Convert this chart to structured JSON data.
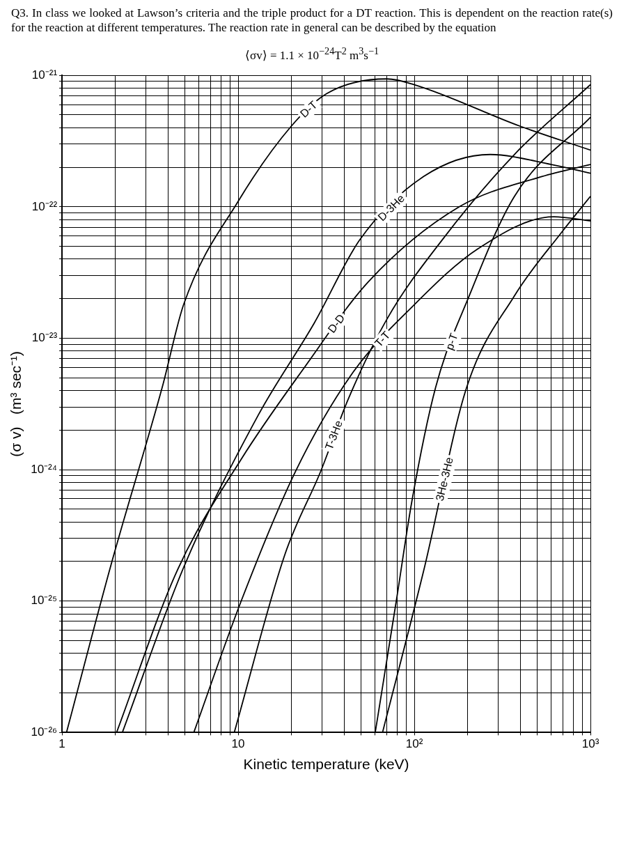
{
  "chart_data": {
    "type": "line",
    "title": "Q3. In class we looked at Lawson’s criteria and the triple product for a DT reaction. This is dependent on the reaction rate(s) for the reaction at different temperatures. The reaction rate in general can be described by the equation",
    "subtitle": "⟨σv⟩ = 1.1 × 10$^{−24}$T$^{2}$ m$^{3}$s$^{−1}$",
    "xlabel": "Kinetic temperature (keV)",
    "ylabel": "(σ v)   (m³ sec⁻¹)",
    "log": "xy",
    "grid": true,
    "marker": "none",
    "xlim": [
      1,
      1000
    ],
    "ylim": [
      1e-26,
      1e-21
    ],
    "xticks": [
      1,
      {
        "value": 2,
        "label": null
      },
      {
        "value": 3,
        "label": null
      },
      {
        "value": 4,
        "label": null
      },
      {
        "value": 5,
        "label": null
      },
      {
        "value": 6,
        "label": null
      },
      {
        "value": 7,
        "label": null
      },
      {
        "value": 8,
        "label": null
      },
      {
        "value": 9,
        "label": null
      },
      10,
      {
        "value": 20,
        "label": null
      },
      {
        "value": 30,
        "label": null
      },
      {
        "value": 40,
        "label": null
      },
      {
        "value": 50,
        "label": null
      },
      {
        "value": 60,
        "label": null
      },
      {
        "value": 70,
        "label": null
      },
      {
        "value": 80,
        "label": null
      },
      {
        "value": 90,
        "label": null
      },
      {
        "value": 100,
        "label": "10²"
      },
      {
        "value": 200,
        "label": null
      },
      {
        "value": 300,
        "label": null
      },
      {
        "value": 400,
        "label": null
      },
      {
        "value": 500,
        "label": null
      },
      {
        "value": 600,
        "label": null
      },
      {
        "value": 700,
        "label": null
      },
      {
        "value": 800,
        "label": null
      },
      {
        "value": 900,
        "label": null
      },
      {
        "value": 1000,
        "label": "10³"
      }
    ],
    "yticks": [
      {
        "value": 1e-26,
        "label": "10⁻²⁶"
      },
      {
        "value": 2e-26,
        "label": null
      },
      {
        "value": 3e-26,
        "label": null
      },
      {
        "value": 4e-26,
        "label": null
      },
      {
        "value": 5e-26,
        "label": null
      },
      {
        "value": 6e-26,
        "label": null
      },
      {
        "value": 7e-26,
        "label": null
      },
      {
        "value": 8e-26,
        "label": null
      },
      {
        "value": 9e-26,
        "label": null
      },
      {
        "value": 1e-25,
        "label": "10⁻²⁵"
      },
      {
        "value": 2e-25,
        "label": null
      },
      {
        "value": 3e-25,
        "label": null
      },
      {
        "value": 4e-25,
        "label": null
      },
      {
        "value": 5e-25,
        "label": null
      },
      {
        "value": 6e-25,
        "label": null
      },
      {
        "value": 7e-25,
        "label": null
      },
      {
        "value": 8e-25,
        "label": null
      },
      {
        "value": 9e-25,
        "label": null
      },
      {
        "value": 1e-24,
        "label": "10⁻²⁴"
      },
      {
        "value": 2e-24,
        "label": null
      },
      {
        "value": 3e-24,
        "label": null
      },
      {
        "value": 4e-24,
        "label": null
      },
      {
        "value": 5e-24,
        "label": null
      },
      {
        "value": 6e-24,
        "label": null
      },
      {
        "value": 7e-24,
        "label": null
      },
      {
        "value": 8e-24,
        "label": null
      },
      {
        "value": 9e-24,
        "label": null
      },
      {
        "value": 1e-23,
        "label": "10⁻²³"
      },
      {
        "value": 2e-23,
        "label": null
      },
      {
        "value": 3e-23,
        "label": null
      },
      {
        "value": 4e-23,
        "label": null
      },
      {
        "value": 5e-23,
        "label": null
      },
      {
        "value": 6e-23,
        "label": null
      },
      {
        "value": 7e-23,
        "label": null
      },
      {
        "value": 8e-23,
        "label": null
      },
      {
        "value": 9e-23,
        "label": null
      },
      {
        "value": 1e-22,
        "label": "10⁻²²"
      },
      {
        "value": 2e-22,
        "label": null
      },
      {
        "value": 3e-22,
        "label": null
      },
      {
        "value": 4e-22,
        "label": null
      },
      {
        "value": 5e-22,
        "label": null
      },
      {
        "value": 6e-22,
        "label": null
      },
      {
        "value": 7e-22,
        "label": null
      },
      {
        "value": 8e-22,
        "label": null
      },
      {
        "value": 9e-22,
        "label": null
      },
      {
        "value": 1e-21,
        "label": "10⁻²¹"
      }
    ],
    "series": [
      {
        "name": "D-T",
        "color": "#000000",
        "x": [
          1.06,
          1.9,
          3.7,
          4.9,
          10,
          20,
          32,
          70,
          100,
          400,
          1000
        ],
        "values": [
          1e-26,
          1.9e-25,
          4.2e-24,
          1.8e-23,
          1.1e-22,
          4.1e-22,
          7.3e-22,
          9.4e-22,
          8.5e-22,
          4.1e-22,
          2.7e-22
        ]
      },
      {
        "name": "D-3He",
        "color": "#000000",
        "x": [
          2.2,
          4.9,
          13,
          27,
          49,
          113,
          270,
          600,
          1000
        ],
        "values": [
          1e-26,
          1.8e-25,
          2.6e-24,
          1.3e-23,
          5.6e-23,
          1.7e-22,
          2.5e-22,
          2.1e-22,
          1.8e-22
        ]
      },
      {
        "name": "D-D",
        "color": "#000000",
        "x": [
          2.04,
          4.5,
          10.4,
          24,
          55,
          180,
          530,
          1000
        ],
        "values": [
          1e-26,
          1.7e-25,
          1.2e-24,
          6.1e-24,
          2.7e-23,
          1e-22,
          1.7e-22,
          2.1e-22
        ]
      },
      {
        "name": "T-T",
        "color": "#000000",
        "x": [
          5.6,
          10.4,
          21,
          44,
          100,
          230,
          620,
          1000
        ],
        "values": [
          1e-26,
          1e-25,
          9.5e-25,
          5.3e-24,
          1.8e-23,
          4.8e-23,
          8.4e-23,
          7.8e-23
        ]
      },
      {
        "name": "T-3He",
        "color": "#000000",
        "x": [
          9.5,
          18.5,
          29.5,
          42,
          70,
          144,
          370,
          1000
        ],
        "values": [
          1e-26,
          2.3e-25,
          9.8e-25,
          3.4e-24,
          1.4e-23,
          5.6e-23,
          2.5e-22,
          8.5e-22
        ]
      },
      {
        "name": "p-T",
        "color": "#000000",
        "x": [
          60,
          79,
          97,
          132,
          205,
          370,
          1000
        ],
        "values": [
          1e-26,
          1e-25,
          5.8e-25,
          4.2e-24,
          2.1e-23,
          1.2e-22,
          4.8e-22
        ]
      },
      {
        "name": "3He-3He",
        "color": "#000000",
        "x": [
          66,
          113,
          198,
          370,
          680,
          1000
        ],
        "values": [
          1e-26,
          1.7e-25,
          4.2e-24,
          2.1e-23,
          6.3e-23,
          1.2e-22
        ]
      }
    ]
  }
}
